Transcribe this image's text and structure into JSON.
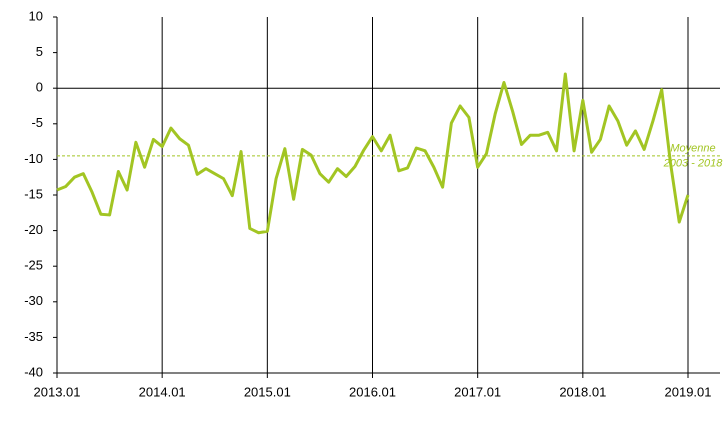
{
  "chart_data": {
    "type": "line",
    "categories": [
      "2013.01",
      null,
      null,
      null,
      null,
      null,
      null,
      null,
      null,
      null,
      null,
      null,
      "2014.01",
      null,
      null,
      null,
      null,
      null,
      null,
      null,
      null,
      null,
      null,
      null,
      "2015.01",
      null,
      null,
      null,
      null,
      null,
      null,
      null,
      null,
      null,
      null,
      null,
      "2016.01",
      null,
      null,
      null,
      null,
      null,
      null,
      null,
      null,
      null,
      null,
      null,
      "2017.01",
      null,
      null,
      null,
      null,
      null,
      null,
      null,
      null,
      null,
      null,
      null,
      "2018.01",
      null,
      null,
      null,
      null,
      null,
      null,
      null,
      null,
      null,
      null,
      null,
      "2019.01"
    ],
    "series": [
      {
        "color": "#a2c523",
        "values": [
          -14.3,
          -13.8,
          -12.5,
          -12,
          -14.6,
          -17.7,
          -17.8,
          -11.7,
          -14.3,
          -7.6,
          -11.1,
          -7.2,
          -8.2,
          -5.6,
          -7.1,
          -8,
          -12.1,
          -11.3,
          -12,
          -12.7,
          -15.1,
          -8.9,
          -19.7,
          -20.3,
          -20.1,
          -12.7,
          -8.5,
          -15.6,
          -8.6,
          -9.4,
          -12,
          -13.2,
          -11.3,
          -12.4,
          -11,
          -8.7,
          -6.8,
          -8.8,
          -6.6,
          -11.6,
          -11.2,
          -8.4,
          -8.8,
          -11.1,
          -13.9,
          -4.9,
          -2.5,
          -4.1,
          -11.1,
          -9.2,
          -3.6,
          0.8,
          -3.3,
          -7.9,
          -6.6,
          -6.6,
          -6.2,
          -8.8,
          2,
          -8.8,
          -1.7,
          -9,
          -7.2,
          -2.5,
          -4.6,
          -8,
          -6,
          -8.6,
          -4.6,
          -0.2,
          -10.5,
          -18.8,
          -15
        ]
      }
    ],
    "mean_line": {
      "value": -9.5,
      "label": [
        "Moyenne",
        "2003 - 2018"
      ]
    },
    "ylim": [
      -40,
      10
    ],
    "yticks": [
      -40,
      -35,
      -30,
      -25,
      -20,
      -15,
      -10,
      -5,
      0,
      5,
      10
    ]
  }
}
